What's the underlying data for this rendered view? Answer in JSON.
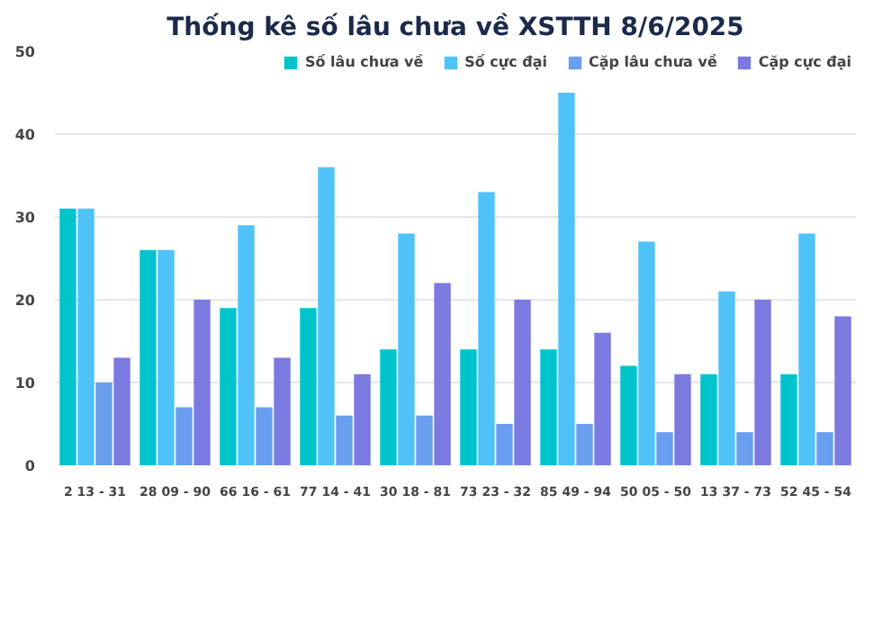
{
  "chart_data": {
    "type": "bar",
    "title": "Thống kê số lâu chưa về XSTTH 8/6/2025",
    "categories": [
      "2 13 - 31",
      "28 09 - 90",
      "66 16 - 61",
      "77 14 - 41",
      "30 18 - 81",
      "73 23 - 32",
      "85 49 - 94",
      "50 05 - 50",
      "13 37 - 73",
      "52 45 - 54"
    ],
    "series": [
      {
        "name": "Số lâu chưa về",
        "color": "#00c4cc",
        "values": [
          31,
          26,
          19,
          19,
          14,
          14,
          14,
          12,
          11,
          11
        ]
      },
      {
        "name": "Số cực đại",
        "color": "#4fc3f7",
        "values": [
          31,
          26,
          29,
          36,
          28,
          33,
          45,
          27,
          21,
          28
        ]
      },
      {
        "name": "Cặp lâu chưa về",
        "color": "#6a9ff0",
        "values": [
          10,
          7,
          7,
          6,
          6,
          5,
          5,
          4,
          4,
          4
        ]
      },
      {
        "name": "Cặp cực đại",
        "color": "#7b7ae0",
        "values": [
          13,
          20,
          13,
          11,
          22,
          20,
          16,
          11,
          20,
          18
        ]
      }
    ],
    "ylim": [
      0,
      50
    ],
    "yticks": [
      0,
      10,
      20,
      30,
      40,
      50
    ],
    "grid": "y",
    "legend": "top"
  }
}
